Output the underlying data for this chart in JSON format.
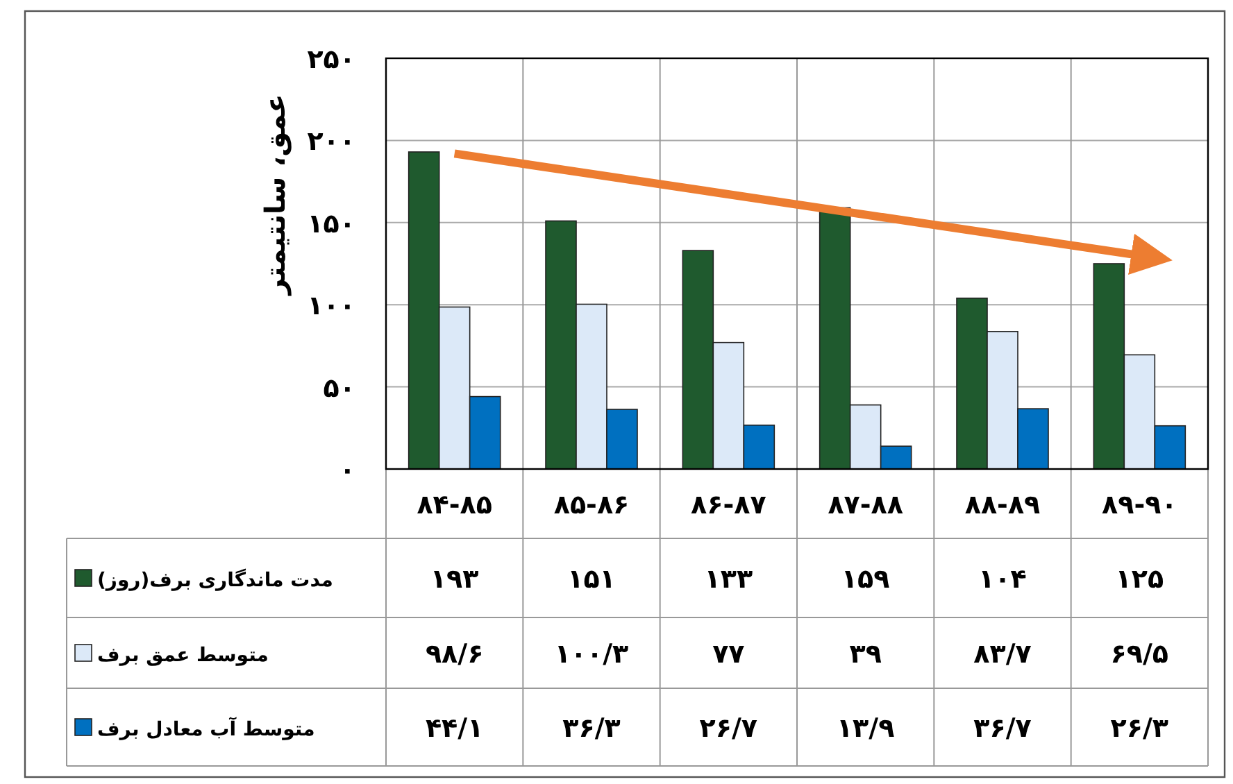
{
  "chart_data": {
    "type": "bar",
    "ylabel": "عمق، سانتیمتر",
    "categories": [
      "۸۴-۸۵",
      "۸۵-۸۶",
      "۸۶-۸۷",
      "۸۷-۸۸",
      "۸۸-۸۹",
      "۸۹-۹۰"
    ],
    "series": [
      {
        "name": "مدت ماندگاری برف(روز)",
        "color": "#1f5a2e",
        "values": [
          193,
          151,
          133,
          159,
          104,
          125
        ],
        "value_labels": [
          "۱۹۳",
          "۱۵۱",
          "۱۳۳",
          "۱۵۹",
          "۱۰۴",
          "۱۲۵"
        ]
      },
      {
        "name": "متوسط عمق برف",
        "color": "#dce9f8",
        "values": [
          98.6,
          100.3,
          77,
          39,
          83.7,
          69.5
        ],
        "value_labels": [
          "۹۸/۶",
          "۱۰۰/۳",
          "۷۷",
          "۳۹",
          "۸۳/۷",
          "۶۹/۵"
        ]
      },
      {
        "name": "متوسط آب معادل برف",
        "color": "#0070c0",
        "values": [
          44.1,
          36.3,
          26.7,
          13.9,
          36.7,
          26.3
        ],
        "value_labels": [
          "۴۴/۱",
          "۳۶/۳",
          "۲۶/۷",
          "۱۳/۹",
          "۳۶/۷",
          "۲۶/۳"
        ]
      },
      {
        "type": "line",
        "color": "#ed7d31",
        "values": [
          192,
          null,
          null,
          null,
          null,
          130
        ]
      }
    ],
    "ylim": [
      0,
      250
    ],
    "yticks": [
      {
        "value": 0,
        "label": "۰"
      },
      {
        "value": 50,
        "label": "۵۰"
      },
      {
        "value": 100,
        "label": "۱۰۰"
      },
      {
        "value": 150,
        "label": "۱۵۰"
      },
      {
        "value": 200,
        "label": "۲۰۰"
      },
      {
        "value": 250,
        "label": "۲۵۰"
      }
    ],
    "grid": "y",
    "legend": "bottom"
  }
}
